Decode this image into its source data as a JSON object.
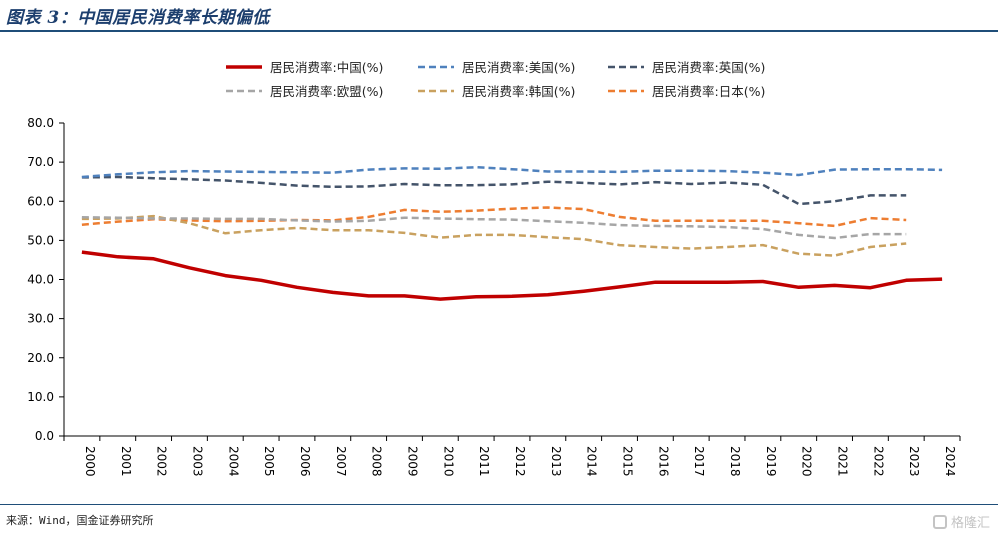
{
  "header": {
    "title": "图表 3：中国居民消费率长期偏低"
  },
  "footer": {
    "source": "来源：Wind，国金证券研究所",
    "watermark": "格隆汇"
  },
  "colors": {
    "china": "#c00000",
    "usa": "#4f81bd",
    "uk": "#44546a",
    "eu": "#a6a6a6",
    "korea": "#c9a15f",
    "japan": "#ed7d31"
  },
  "chart_data": {
    "type": "line",
    "x": [
      "2000",
      "2001",
      "2002",
      "2003",
      "2004",
      "2005",
      "2006",
      "2007",
      "2008",
      "2009",
      "2010",
      "2011",
      "2012",
      "2013",
      "2014",
      "2015",
      "2016",
      "2017",
      "2018",
      "2019",
      "2020",
      "2021",
      "2022",
      "2023",
      "2024"
    ],
    "yticks": [
      "0.0",
      "10.0",
      "20.0",
      "30.0",
      "40.0",
      "50.0",
      "60.0",
      "70.0",
      "80.0"
    ],
    "ylim": [
      0,
      80
    ],
    "legend_position": "top",
    "series": [
      {
        "name": "居民消费率:中国(%)",
        "style": "solid",
        "color": "#c00000",
        "values": [
          47.0,
          45.8,
          45.3,
          43.0,
          41.0,
          39.8,
          38.0,
          36.7,
          35.8,
          35.8,
          35.0,
          35.6,
          35.7,
          36.1,
          37.0,
          38.1,
          39.3,
          39.3,
          39.3,
          39.5,
          38.0,
          38.5,
          37.9,
          39.8,
          40.1
        ]
      },
      {
        "name": "居民消费率:美国(%)",
        "style": "dashed",
        "color": "#4f81bd",
        "values": [
          66.2,
          66.9,
          67.4,
          67.7,
          67.6,
          67.5,
          67.4,
          67.3,
          68.1,
          68.4,
          68.3,
          68.7,
          68.2,
          67.6,
          67.6,
          67.5,
          67.8,
          67.8,
          67.7,
          67.3,
          66.7,
          68.1,
          68.2,
          68.2,
          68.0
        ]
      },
      {
        "name": "居民消费率:英国(%)",
        "style": "dashed",
        "color": "#44546a",
        "values": [
          66.1,
          66.2,
          65.9,
          65.6,
          65.3,
          64.7,
          64.0,
          63.7,
          63.8,
          64.4,
          64.1,
          64.1,
          64.3,
          65.0,
          64.7,
          64.3,
          64.9,
          64.4,
          64.8,
          64.2,
          59.3,
          60.0,
          61.5,
          61.5,
          null
        ]
      },
      {
        "name": "居民消费率:欧盟(%)",
        "style": "dashed",
        "color": "#a6a6a6",
        "values": [
          55.9,
          55.8,
          55.6,
          55.6,
          55.5,
          55.5,
          55.1,
          54.8,
          55.0,
          55.8,
          55.6,
          55.4,
          55.3,
          54.9,
          54.5,
          53.9,
          53.7,
          53.6,
          53.4,
          52.9,
          51.4,
          50.6,
          51.6,
          51.6,
          null
        ]
      },
      {
        "name": "居民消费率:韩国(%)",
        "style": "dashed",
        "color": "#c9a15f",
        "values": [
          55.5,
          55.6,
          56.2,
          54.4,
          51.8,
          52.6,
          53.2,
          52.6,
          52.6,
          51.9,
          50.7,
          51.4,
          51.4,
          50.8,
          50.3,
          48.8,
          48.3,
          47.9,
          48.3,
          48.8,
          46.6,
          46.1,
          48.3,
          49.2,
          null
        ]
      },
      {
        "name": "居民消费率:日本(%)",
        "style": "dashed",
        "color": "#ed7d31",
        "values": [
          54.0,
          54.8,
          55.4,
          55.1,
          54.9,
          55.0,
          55.2,
          55.1,
          56.0,
          57.8,
          57.3,
          57.6,
          58.1,
          58.4,
          58.0,
          56.0,
          55.0,
          55.0,
          55.0,
          55.0,
          54.4,
          53.7,
          55.7,
          55.2,
          null
        ]
      }
    ]
  }
}
